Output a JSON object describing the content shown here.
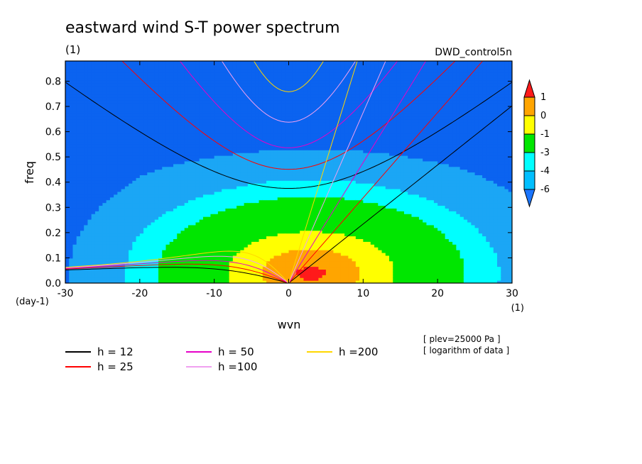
{
  "chart_data": {
    "type": "heatmap",
    "title": "eastward wind S-T power spectrum",
    "subtitle_left": "(1)",
    "subtitle_right": "DWD_control5n",
    "xlabel": "wvn",
    "ylabel": "freq",
    "x_unit": "(1)",
    "y_unit": "(day-1)",
    "xlim": [
      -30,
      30
    ],
    "ylim": [
      0,
      0.88
    ],
    "xticks": [
      "-30",
      "-20",
      "-10",
      "0",
      "10",
      "20",
      "30"
    ],
    "yticks": [
      "0.0",
      "0.1",
      "0.2",
      "0.3",
      "0.4",
      "0.5",
      "0.6",
      "0.7",
      "0.8"
    ],
    "annotations": [
      "[ plev=25000 Pa ]",
      "[ logarithm of data ]"
    ],
    "colorbar": {
      "labels": [
        "1",
        "0",
        "-1",
        "-3",
        "-4",
        "-6"
      ],
      "colors": [
        "#ff1a1a",
        "#ffa500",
        "#ffff00",
        "#00e600",
        "#00ffff",
        "#00bfff",
        "#1a75ff"
      ]
    },
    "levels": [
      -6,
      -4,
      -3,
      -1,
      0,
      1
    ],
    "level_colors": [
      "#0b63f0",
      "#1ba6f5",
      "#00ffff",
      "#00e600",
      "#ffff00",
      "#ffa500",
      "#ff1a1a"
    ],
    "series": [
      {
        "name": "h = 12",
        "color": "#000000"
      },
      {
        "name": "h = 25",
        "color": "#ff0000"
      },
      {
        "name": "h = 50",
        "color": "#e600c8"
      },
      {
        "name": "h =100",
        "color": "#f0a0f0"
      },
      {
        "name": "h =200",
        "color": "#ffd700"
      }
    ],
    "equivalent_depths": [
      12,
      25,
      50,
      100,
      200
    ]
  }
}
